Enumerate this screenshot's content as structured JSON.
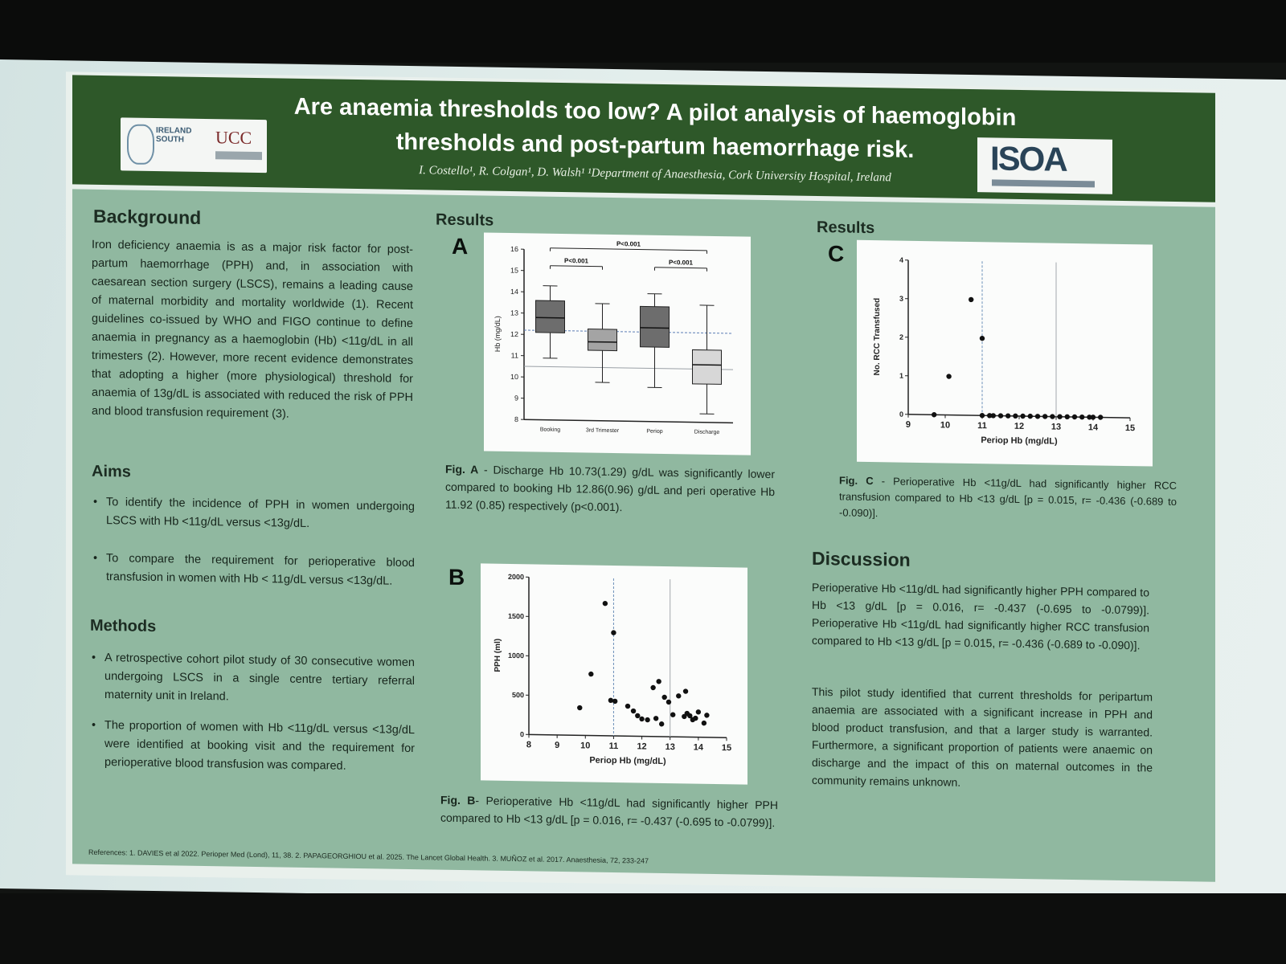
{
  "poster": {
    "title": "Are anaemia thresholds too low? A pilot analysis of haemoglobin thresholds and post-partum haemorrhage risk.",
    "authors": "I. Costello¹, R. Colgan¹, D. Walsh¹  ¹Department of Anaesthesia, Cork University Hospital, Ireland",
    "logo_left_text": "IRELAND SOUTH",
    "logo_left_ucc": "UCC",
    "logo_right_text": "ISOA"
  },
  "background": {
    "heading": "Background",
    "text": "Iron deficiency anaemia is as a major risk factor for post-partum haemorrhage (PPH) and, in association with caesarean section surgery (LSCS), remains a leading cause of maternal morbidity and mortality worldwide (1). Recent guidelines co-issued by WHO and FIGO continue to define anaemia in pregnancy as a haemoglobin (Hb) <11g/dL in all trimesters (2). However, more recent evidence demonstrates that adopting a higher (more physiological) threshold for anaemia of 13g/dL is associated with reduced the risk of PPH and blood transfusion requirement (3)."
  },
  "aims": {
    "heading": "Aims",
    "items": [
      "To identify the incidence of PPH in women undergoing LSCS with Hb <11g/dL versus <13g/dL.",
      "To compare the requirement for perioperative blood transfusion in women with Hb < 11g/dL versus <13g/dL."
    ]
  },
  "methods": {
    "heading": "Methods",
    "items": [
      "A retrospective cohort pilot study of 30 consecutive women undergoing LSCS in a single centre tertiary referral maternity unit in Ireland.",
      "The proportion of women with Hb <11g/dL versus <13g/dL were identified at booking visit and the requirement for perioperative blood transfusion was compared."
    ]
  },
  "results": {
    "heading_left": "Results",
    "heading_right": "Results",
    "panel_a": "A",
    "panel_b": "B",
    "panel_c": "C",
    "caption_a_label": "Fig. A",
    "caption_a": " - Discharge Hb 10.73(1.29) g/dL was significantly lower compared to booking Hb 12.86(0.96) g/dL and peri operative Hb 11.92 (0.85) respectively (p<0.001).",
    "caption_b_label": "Fig. B",
    "caption_b": "- Perioperative Hb <11g/dL had significantly higher PPH compared to Hb <13 g/dL [p = 0.016, r= -0.437 (-0.695 to -0.0799)].",
    "caption_c_label": "Fig. C",
    "caption_c": " - Perioperative Hb <11g/dL had significantly higher RCC transfusion compared to Hb <13 g/dL [p = 0.015, r= -0.436 (-0.689 to -0.090)]."
  },
  "discussion": {
    "heading": "Discussion",
    "p1": "Perioperative Hb <11g/dL had significantly higher PPH compared to Hb <13 g/dL [p = 0.016, r= -0.437 (-0.695 to -0.0799)]. Perioperative Hb <11g/dL had significantly higher RCC transfusion compared to Hb <13 g/dL [p = 0.015, r= -0.436 (-0.689 to -0.090)].",
    "p2": "This pilot study identified that current thresholds for peripartum anaemia are associated with a significant increase in PPH and blood product transfusion, and that a larger study is warranted. Furthermore, a significant proportion of patients were anaemic on discharge and the impact of this on maternal outcomes in the community remains unknown."
  },
  "references": "References: 1. DAVIES et al 2022. Perioper Med (Lond), 11, 38. 2. PAPAGEORGHIOU et al. 2025. The Lancet Global Health. 3. MUÑOZ et al. 2017. Anaesthesia, 72, 233-247",
  "chart_data": [
    {
      "id": "A",
      "type": "box",
      "categories": [
        "Booking",
        "3rd Trimester",
        "Periop",
        "Discharge"
      ],
      "ylabel": "Hb (mg/dL)",
      "ylim": [
        8,
        16
      ],
      "yticks": [
        8,
        9,
        10,
        11,
        12,
        13,
        14,
        15,
        16
      ],
      "boxes": [
        {
          "min": 10.9,
          "q1": 12.1,
          "median": 12.8,
          "q3": 13.6,
          "max": 14.3
        },
        {
          "min": 9.8,
          "q1": 11.3,
          "median": 11.7,
          "q3": 12.3,
          "max": 13.5
        },
        {
          "min": 9.6,
          "q1": 11.5,
          "median": 12.4,
          "q3": 13.4,
          "max": 14.0
        },
        {
          "min": 8.4,
          "q1": 9.8,
          "median": 10.7,
          "q3": 11.4,
          "max": 13.5
        }
      ],
      "reference_lines": [
        12.2,
        10.5
      ],
      "annotations": [
        {
          "text": "P<0.001",
          "from": 0,
          "to": 1,
          "level": 1
        },
        {
          "text": "P<0.001",
          "from": 2,
          "to": 3,
          "level": 1
        },
        {
          "text": "P<0.001",
          "from": 0,
          "to": 3,
          "level": 2
        }
      ]
    },
    {
      "id": "B",
      "type": "scatter",
      "xlabel": "Periop Hb (mg/dL)",
      "ylabel": "PPH (ml)",
      "xlim": [
        8,
        15
      ],
      "ylim": [
        0,
        2000
      ],
      "xticks": [
        8,
        9,
        10,
        11,
        12,
        13,
        14,
        15
      ],
      "yticks": [
        0,
        500,
        1000,
        1500,
        2000
      ],
      "vlines": [
        11,
        13
      ],
      "points": [
        [
          9.8,
          350
        ],
        [
          10.7,
          1680
        ],
        [
          10.2,
          780
        ],
        [
          11.0,
          1310
        ],
        [
          10.9,
          450
        ],
        [
          11.05,
          440
        ],
        [
          11.5,
          380
        ],
        [
          11.7,
          320
        ],
        [
          11.85,
          260
        ],
        [
          12.0,
          220
        ],
        [
          12.2,
          210
        ],
        [
          12.4,
          620
        ],
        [
          12.6,
          700
        ],
        [
          12.5,
          230
        ],
        [
          12.8,
          500
        ],
        [
          12.95,
          440
        ],
        [
          13.1,
          280
        ],
        [
          13.3,
          520
        ],
        [
          13.55,
          580
        ],
        [
          13.5,
          260
        ],
        [
          13.6,
          300
        ],
        [
          13.7,
          270
        ],
        [
          13.9,
          240
        ],
        [
          14.0,
          320
        ],
        [
          14.2,
          180
        ],
        [
          14.3,
          280
        ],
        [
          12.7,
          160
        ],
        [
          13.8,
          220
        ]
      ]
    },
    {
      "id": "C",
      "type": "scatter",
      "xlabel": "Periop Hb (mg/dL)",
      "ylabel": "No. RCC Transfused",
      "xlim": [
        9,
        15
      ],
      "ylim": [
        0,
        4
      ],
      "xticks": [
        9,
        10,
        11,
        12,
        13,
        14,
        15
      ],
      "yticks": [
        0,
        1,
        2,
        3,
        4
      ],
      "vlines": [
        11,
        13
      ],
      "points": [
        [
          9.7,
          0
        ],
        [
          10.1,
          1
        ],
        [
          10.7,
          3
        ],
        [
          11.0,
          2
        ],
        [
          11.0,
          0
        ],
        [
          11.2,
          0
        ],
        [
          11.3,
          0
        ],
        [
          11.5,
          0
        ],
        [
          11.7,
          0
        ],
        [
          11.9,
          0
        ],
        [
          12.1,
          0
        ],
        [
          12.3,
          0
        ],
        [
          12.5,
          0
        ],
        [
          12.7,
          0
        ],
        [
          12.9,
          0
        ],
        [
          13.1,
          0
        ],
        [
          13.3,
          0
        ],
        [
          13.5,
          0
        ],
        [
          13.7,
          0
        ],
        [
          13.9,
          0
        ],
        [
          14.0,
          0
        ],
        [
          14.2,
          0
        ]
      ]
    }
  ]
}
